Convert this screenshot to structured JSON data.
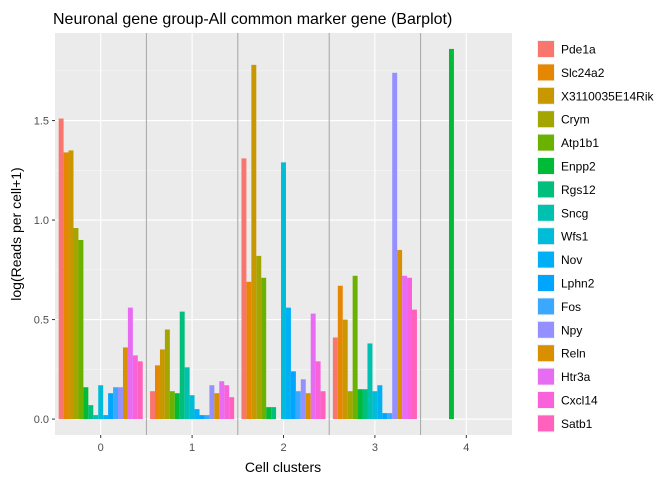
{
  "chart_data": {
    "type": "bar",
    "title": "Neuronal gene group-All common marker gene (Barplot)",
    "xlabel": "Cell clusters",
    "ylabel": "log(Reads per cell+1)",
    "categories": [
      "0",
      "1",
      "2",
      "3",
      "4"
    ],
    "ylim": [
      -0.08,
      1.94
    ],
    "yticks": [
      0.0,
      0.5,
      1.0,
      1.5
    ],
    "ytick_labels": [
      "0.0",
      "0.5",
      "1.0",
      "1.5"
    ],
    "grid": true,
    "legend_position": "right",
    "series": [
      {
        "name": "Pde1a",
        "color": "#F8766D",
        "values": [
          1.51,
          0.14,
          1.31,
          0.41,
          0
        ]
      },
      {
        "name": "Slc24a2",
        "color": "#E58700",
        "values": [
          1.34,
          0.27,
          0.69,
          0.67,
          0
        ]
      },
      {
        "name": "X3110035E14Rik",
        "color": "#C99800",
        "values": [
          1.35,
          0.35,
          1.78,
          0.5,
          0
        ]
      },
      {
        "name": "Crym",
        "color": "#A3A500",
        "values": [
          0.96,
          0.45,
          0.82,
          0.14,
          0
        ]
      },
      {
        "name": "Atp1b1",
        "color": "#6BB100",
        "values": [
          0.9,
          0.14,
          0.71,
          0.72,
          0
        ]
      },
      {
        "name": "Enpp2",
        "color": "#00BA38",
        "values": [
          0.16,
          0.13,
          0.06,
          0.15,
          1.86
        ]
      },
      {
        "name": "Rgs12",
        "color": "#00BF7D",
        "values": [
          0.07,
          0.54,
          0.06,
          0.15,
          0
        ]
      },
      {
        "name": "Sncg",
        "color": "#00C0AF",
        "values": [
          0.02,
          0.26,
          0.0,
          0.38,
          0
        ]
      },
      {
        "name": "Wfs1",
        "color": "#00BCD8",
        "values": [
          0.17,
          0.12,
          1.29,
          0.14,
          0
        ]
      },
      {
        "name": "Nov",
        "color": "#00B0F6",
        "values": [
          0.02,
          0.05,
          0.56,
          0.17,
          0
        ]
      },
      {
        "name": "Lphn2",
        "color": "#00A5FF",
        "values": [
          0.13,
          0.02,
          0.24,
          0.03,
          0
        ]
      },
      {
        "name": "Fos",
        "color": "#3BA8FF",
        "values": [
          0.16,
          0.02,
          0.14,
          0.03,
          0
        ]
      },
      {
        "name": "Npy",
        "color": "#9590FF",
        "values": [
          0.16,
          0.17,
          0.2,
          1.74,
          0
        ]
      },
      {
        "name": "Reln",
        "color": "#D89000",
        "values": [
          0.36,
          0.13,
          0.13,
          0.85,
          0
        ]
      },
      {
        "name": "Htr3a",
        "color": "#E76BF3",
        "values": [
          0.56,
          0.19,
          0.53,
          0.72,
          0
        ]
      },
      {
        "name": "Cxcl14",
        "color": "#FA62DB",
        "values": [
          0.32,
          0.17,
          0.29,
          0.71,
          0
        ]
      },
      {
        "name": "Satb1",
        "color": "#FF62BC",
        "values": [
          0.29,
          0.11,
          0.14,
          0.55,
          0
        ]
      }
    ]
  }
}
